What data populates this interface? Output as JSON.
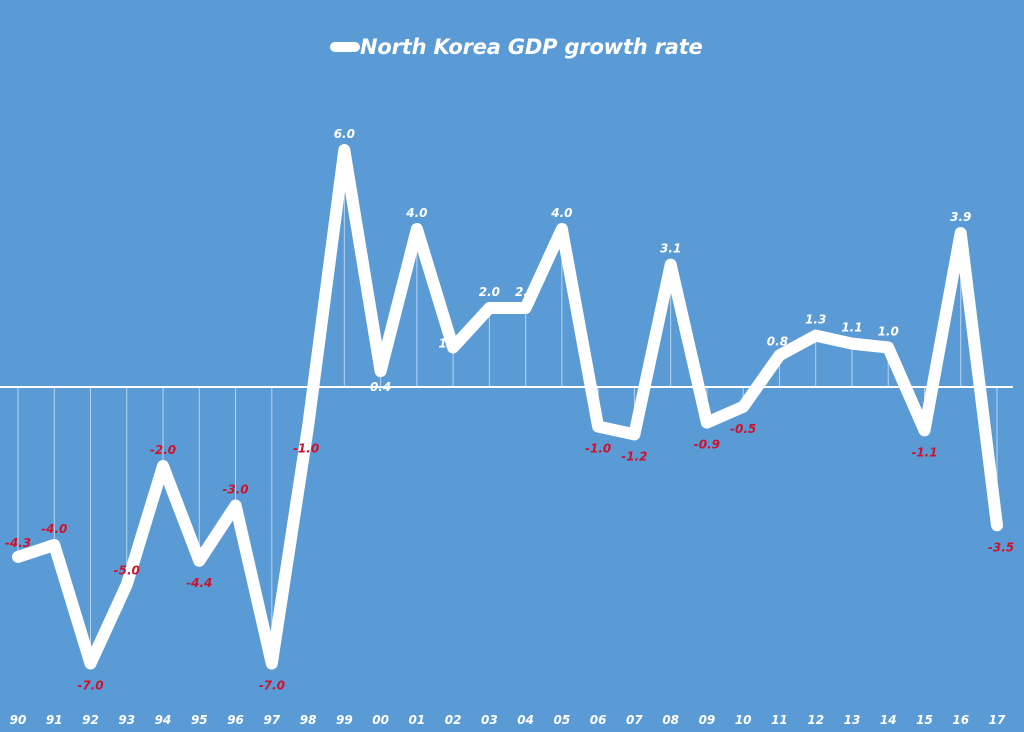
{
  "chart_data": {
    "type": "line",
    "title": "North Korea GDP growth rate",
    "legend": [
      "North Korea GDP growth rate"
    ],
    "legend_position": "top",
    "xlabel": "",
    "ylabel": "",
    "categories": [
      "90",
      "91",
      "92",
      "93",
      "94",
      "95",
      "96",
      "97",
      "98",
      "99",
      "00",
      "01",
      "02",
      "03",
      "04",
      "05",
      "06",
      "07",
      "08",
      "09",
      "10",
      "11",
      "12",
      "13",
      "14",
      "15",
      "16",
      "17"
    ],
    "series": [
      {
        "name": "North Korea GDP growth rate",
        "values": [
          -4.3,
          -4.0,
          -7.0,
          -5.0,
          -2.0,
          -4.4,
          -3.0,
          -7.0,
          -1.0,
          6.0,
          0.4,
          4.0,
          1.0,
          2.0,
          2.0,
          4.0,
          -1.0,
          -1.2,
          3.1,
          -0.9,
          -0.5,
          0.8,
          1.3,
          1.1,
          1.0,
          -1.1,
          3.9,
          -3.5
        ]
      }
    ],
    "data_labels": [
      "-4.3",
      "-4.0",
      "-7.0",
      "-5.0",
      "-2.0",
      "-4.4",
      "-3.0",
      "-7.0",
      "-1.0",
      "6.0",
      "0.4",
      "4.0",
      "1.0",
      "2.0",
      "2.0",
      "4.0",
      "-1.0",
      "-1.2",
      "3.1",
      "-0.9",
      "-0.5",
      "0.8",
      "1.3",
      "1.1",
      "1.0",
      "-1.1",
      "3.9",
      "-3.5"
    ],
    "ylim": [
      -7.5,
      6.5
    ],
    "grid": false,
    "drop_lines": true,
    "y_axis_visible": false
  },
  "colors": {
    "background": "#5b9bd5",
    "line": "#ffffff",
    "positive_label": "#ffffff",
    "negative_label": "#d0112b",
    "axis": "#ffffff",
    "drop_line": "#cfe2f5"
  }
}
